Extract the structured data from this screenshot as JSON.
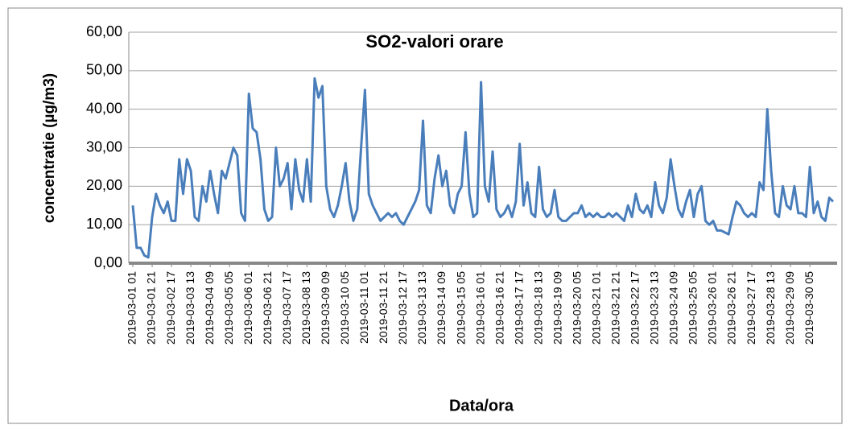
{
  "chart_data": {
    "type": "line",
    "title": "SO2-valori orare",
    "x_label": "Data/ora",
    "y_label": "concentratie (µg/m3)",
    "categories": [
      "2019-03-01 01",
      null,
      null,
      null,
      null,
      "2019-03-01 21",
      null,
      null,
      null,
      null,
      "2019-03-02 17",
      null,
      null,
      null,
      null,
      "2019-03-03 13",
      null,
      null,
      null,
      null,
      "2019-03-04 09",
      null,
      null,
      null,
      null,
      "2019-03-05 05",
      null,
      null,
      null,
      null,
      "2019-03-06 01",
      null,
      null,
      null,
      null,
      "2019-03-06 21",
      null,
      null,
      null,
      null,
      "2019-03-07 17",
      null,
      null,
      null,
      null,
      "2019-03-08 13",
      null,
      null,
      null,
      null,
      "2019-03-09 09",
      null,
      null,
      null,
      null,
      "2019-03-10 05",
      null,
      null,
      null,
      null,
      "2019-03-11 01",
      null,
      null,
      null,
      null,
      "2019-03-11 21",
      null,
      null,
      null,
      null,
      "2019-03-12 17",
      null,
      null,
      null,
      null,
      "2019-03-13 13",
      null,
      null,
      null,
      null,
      "2019-03-14 09",
      null,
      null,
      null,
      null,
      "2019-03-15 05",
      null,
      null,
      null,
      null,
      "2019-03-16 01",
      null,
      null,
      null,
      null,
      "2019-03-16 21",
      null,
      null,
      null,
      null,
      "2019-03-17 17",
      null,
      null,
      null,
      null,
      "2019-03-18 13",
      null,
      null,
      null,
      null,
      "2019-03-19 09",
      null,
      null,
      null,
      null,
      "2019-03-20 05",
      null,
      null,
      null,
      null,
      "2019-03-21 01",
      null,
      null,
      null,
      null,
      "2019-03-21 21",
      null,
      null,
      null,
      null,
      "2019-03-22 17",
      null,
      null,
      null,
      null,
      "2019-03-23 13",
      null,
      null,
      null,
      null,
      "2019-03-24 09",
      null,
      null,
      null,
      null,
      "2019-03-25 05",
      null,
      null,
      null,
      null,
      "2019-03-26 01",
      null,
      null,
      null,
      null,
      "2019-03-26 21",
      null,
      null,
      null,
      null,
      "2019-03-27 17",
      null,
      null,
      null,
      null,
      "2019-03-28 13",
      null,
      null,
      null,
      null,
      "2019-03-29 09",
      null,
      null,
      null,
      null,
      "2019-03-30 05",
      null,
      null,
      null,
      null,
      null,
      null
    ],
    "series": [
      {
        "name": "SO2",
        "color": "#4a7ebb",
        "values": [
          15,
          4,
          4,
          2,
          1.5,
          12,
          18,
          15,
          13,
          16,
          11,
          11,
          27,
          18,
          27,
          24,
          12,
          11,
          20,
          16,
          24,
          18,
          13,
          24,
          22,
          26,
          30,
          28,
          13,
          11,
          44,
          35,
          34,
          27,
          14,
          11,
          12,
          30,
          20,
          22,
          26,
          14,
          27,
          19,
          16,
          27,
          16,
          48,
          43,
          46,
          20,
          14,
          12,
          15,
          20,
          26,
          16,
          11,
          14,
          30,
          45,
          18,
          15,
          13,
          11,
          12,
          13,
          12,
          13,
          11,
          10,
          12,
          14,
          16,
          19,
          37,
          15,
          13,
          22,
          28,
          20,
          24,
          15,
          13,
          18,
          20,
          34,
          18,
          12,
          13,
          47,
          20,
          16,
          29,
          14,
          12,
          13,
          15,
          12,
          16,
          31,
          15,
          21,
          13,
          12,
          25,
          14,
          12,
          13,
          19,
          12,
          11,
          11,
          12,
          13,
          13,
          15,
          12,
          13,
          12,
          13,
          12,
          12,
          13,
          12,
          13,
          12,
          11,
          15,
          12,
          18,
          14,
          13,
          15,
          12,
          21,
          15,
          13,
          17,
          27,
          20,
          14,
          12,
          16,
          19,
          12,
          18,
          20,
          11,
          10,
          11,
          8.5,
          8.5,
          8,
          7.5,
          12,
          16,
          15,
          13,
          12,
          13,
          12,
          21,
          19,
          40,
          24,
          13,
          12,
          20,
          15,
          14,
          20,
          13,
          13,
          12,
          25,
          13,
          16,
          12,
          11,
          17,
          16
        ]
      }
    ],
    "ylim": [
      0,
      60
    ],
    "yticks": [
      {
        "value": 0,
        "label": "0,00"
      },
      {
        "value": 10,
        "label": "10,00"
      },
      {
        "value": 20,
        "label": "20,00"
      },
      {
        "value": 30,
        "label": "30,00"
      },
      {
        "value": 40,
        "label": "40,00"
      },
      {
        "value": 50,
        "label": "50,00"
      },
      {
        "value": 60,
        "label": "60,00"
      }
    ],
    "grid": true
  }
}
